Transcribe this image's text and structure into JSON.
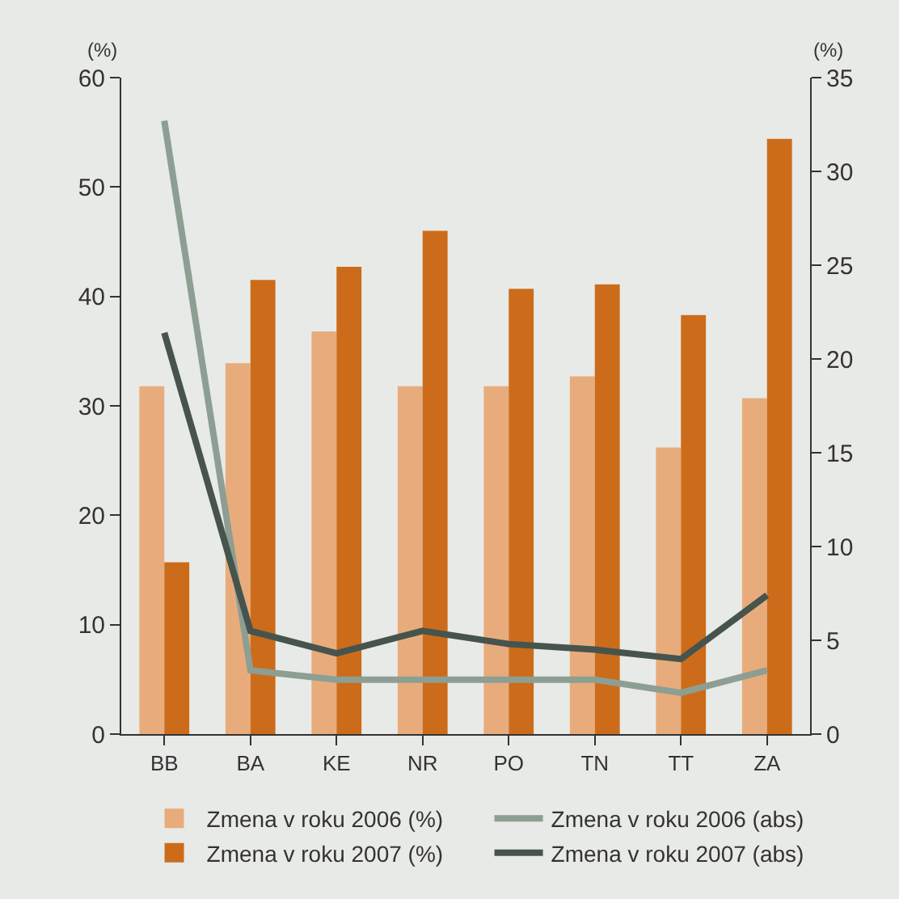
{
  "chart_data": {
    "type": "bar",
    "ylabel": "(%)",
    "y2label": "(%)",
    "categories": [
      "BB",
      "BA",
      "KE",
      "NR",
      "PO",
      "TN",
      "TT",
      "ZA"
    ],
    "series": [
      {
        "name": "Zmena v roku 2006 (%)",
        "color": "#e8ac7c",
        "values": [
          31.8,
          33.9,
          36.8,
          31.8,
          31.8,
          32.7,
          26.2,
          30.7
        ]
      },
      {
        "name": "Zmena v roku 2007 (%)",
        "color": "#cc6c1a",
        "values": [
          15.7,
          41.5,
          42.7,
          46.0,
          40.7,
          41.1,
          38.3,
          54.4
        ]
      },
      {
        "name": "Zmena v roku 2006 (abs)",
        "type": "line",
        "axis": "y2",
        "color": "#8d9e93",
        "values": [
          32.7,
          3.4,
          2.9,
          2.9,
          2.9,
          2.9,
          2.2,
          3.4
        ]
      },
      {
        "name": "Zmena v roku 2007 (abs)",
        "type": "line",
        "axis": "y2",
        "color": "#46544d",
        "values": [
          21.4,
          5.5,
          4.3,
          5.5,
          4.8,
          4.5,
          4.0,
          7.4
        ]
      }
    ],
    "ylim": [
      0,
      60
    ],
    "yticks": [
      0,
      10,
      20,
      30,
      40,
      50,
      60
    ],
    "y2lim": [
      0,
      35
    ],
    "y2ticks": [
      0,
      5,
      10,
      15,
      20,
      25,
      30,
      35
    ],
    "grid": false,
    "legend": "bottom",
    "marker": "none",
    "line_style": "solid"
  }
}
